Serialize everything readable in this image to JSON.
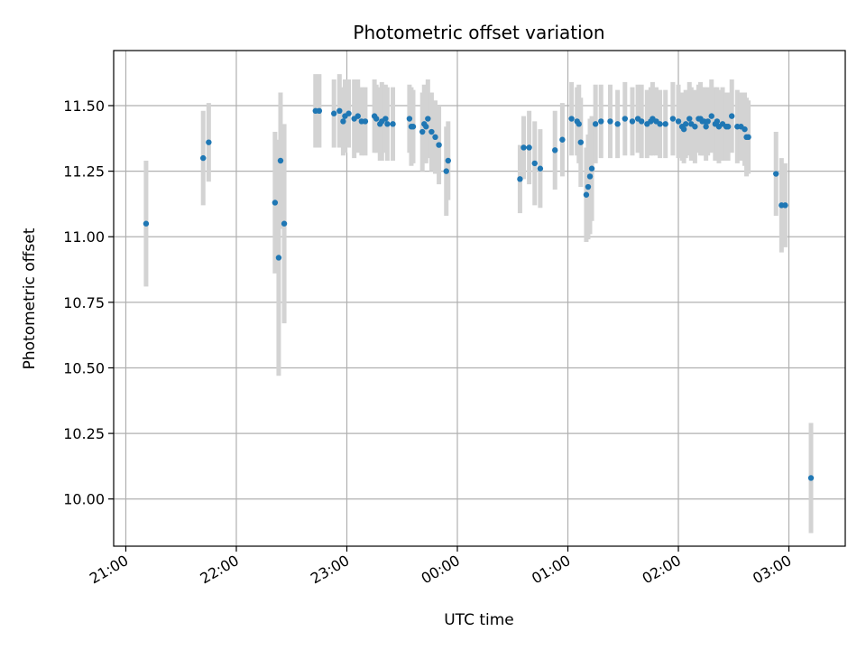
{
  "chart_data": {
    "type": "scatter",
    "title": "Photometric offset variation",
    "xlabel": "UTC time",
    "ylabel": "Photometric offset",
    "x_unit": "UTC time",
    "x_ticks": [
      "21:00",
      "22:00",
      "23:00",
      "00:00",
      "01:00",
      "02:00",
      "03:00"
    ],
    "x_tick_hours": [
      21,
      22,
      23,
      24,
      25,
      26,
      27
    ],
    "xlim": [
      "20:53",
      "03:30"
    ],
    "xlim_hours": [
      20.89,
      27.51
    ],
    "y_ticks": [
      "10.00",
      "10.25",
      "10.50",
      "10.75",
      "11.00",
      "11.25",
      "11.50"
    ],
    "ylim": [
      9.82,
      11.71
    ],
    "grid": true,
    "marker_color": "#1f77b4",
    "errorbar_color": "#d3d3d3",
    "series": [
      {
        "x": [
          "21:11",
          "21:42",
          "21:45",
          "22:21",
          "22:23",
          "22:24",
          "22:26",
          "22:43",
          "22:45",
          "22:53",
          "22:56",
          "22:58",
          "22:59",
          "23:01",
          "23:04",
          "23:06",
          "23:08",
          "23:10",
          "23:15",
          "23:16",
          "23:18",
          "23:19",
          "23:21",
          "23:22",
          "23:25",
          "23:34",
          "23:35",
          "23:36",
          "23:41",
          "23:42",
          "23:43",
          "23:44",
          "23:46",
          "23:48",
          "23:50",
          "23:54",
          "23:55",
          "00:34",
          "00:36",
          "00:39",
          "00:42",
          "00:45",
          "00:53",
          "00:57",
          "01:02",
          "01:05",
          "01:06",
          "01:07",
          "01:10",
          "01:11",
          "01:12",
          "01:13",
          "01:15",
          "01:18",
          "01:23",
          "01:27",
          "01:31",
          "01:35",
          "01:38",
          "01:40",
          "01:43",
          "01:45",
          "01:46",
          "01:48",
          "01:50",
          "01:53",
          "01:57",
          "02:00",
          "02:02",
          "02:03",
          "02:04",
          "02:06",
          "02:07",
          "02:09",
          "02:11",
          "02:12",
          "02:13",
          "02:14",
          "02:15",
          "02:16",
          "02:18",
          "02:20",
          "02:21",
          "02:22",
          "02:24",
          "02:26",
          "02:27",
          "02:29",
          "02:32",
          "02:34",
          "02:36",
          "02:37",
          "02:38",
          "02:53",
          "02:56",
          "02:58",
          "03:12"
        ],
        "y": [
          11.05,
          11.3,
          11.36,
          11.13,
          10.92,
          11.29,
          11.05,
          11.48,
          11.48,
          11.47,
          11.48,
          11.44,
          11.46,
          11.47,
          11.45,
          11.46,
          11.44,
          11.44,
          11.46,
          11.45,
          11.43,
          11.44,
          11.45,
          11.43,
          11.43,
          11.45,
          11.42,
          11.42,
          11.4,
          11.43,
          11.42,
          11.45,
          11.4,
          11.38,
          11.35,
          11.25,
          11.29,
          11.22,
          11.34,
          11.34,
          11.28,
          11.26,
          11.33,
          11.37,
          11.45,
          11.44,
          11.43,
          11.36,
          11.16,
          11.19,
          11.23,
          11.26,
          11.43,
          11.44,
          11.44,
          11.43,
          11.45,
          11.44,
          11.45,
          11.44,
          11.43,
          11.44,
          11.45,
          11.44,
          11.43,
          11.43,
          11.45,
          11.44,
          11.42,
          11.41,
          11.43,
          11.45,
          11.43,
          11.42,
          11.45,
          11.45,
          11.44,
          11.44,
          11.42,
          11.44,
          11.46,
          11.43,
          11.44,
          11.42,
          11.43,
          11.42,
          11.42,
          11.46,
          11.42,
          11.42,
          11.41,
          11.38,
          11.38,
          11.24,
          11.12,
          11.12,
          10.08
        ],
        "yerr": [
          0.24,
          0.18,
          0.15,
          0.27,
          0.45,
          0.26,
          0.38,
          0.14,
          0.14,
          0.13,
          0.14,
          0.13,
          0.14,
          0.13,
          0.15,
          0.14,
          0.13,
          0.13,
          0.14,
          0.13,
          0.14,
          0.15,
          0.13,
          0.14,
          0.14,
          0.13,
          0.15,
          0.14,
          0.15,
          0.15,
          0.14,
          0.15,
          0.15,
          0.14,
          0.15,
          0.17,
          0.15,
          0.13,
          0.12,
          0.14,
          0.16,
          0.15,
          0.15,
          0.14,
          0.14,
          0.13,
          0.15,
          0.17,
          0.18,
          0.2,
          0.22,
          0.2,
          0.15,
          0.14,
          0.14,
          0.13,
          0.14,
          0.13,
          0.13,
          0.14,
          0.13,
          0.13,
          0.14,
          0.13,
          0.13,
          0.13,
          0.14,
          0.14,
          0.13,
          0.13,
          0.13,
          0.14,
          0.14,
          0.14,
          0.13,
          0.14,
          0.13,
          0.13,
          0.13,
          0.13,
          0.14,
          0.14,
          0.13,
          0.14,
          0.14,
          0.13,
          0.13,
          0.14,
          0.14,
          0.13,
          0.14,
          0.15,
          0.14,
          0.16,
          0.18,
          0.16,
          0.21
        ]
      }
    ]
  }
}
